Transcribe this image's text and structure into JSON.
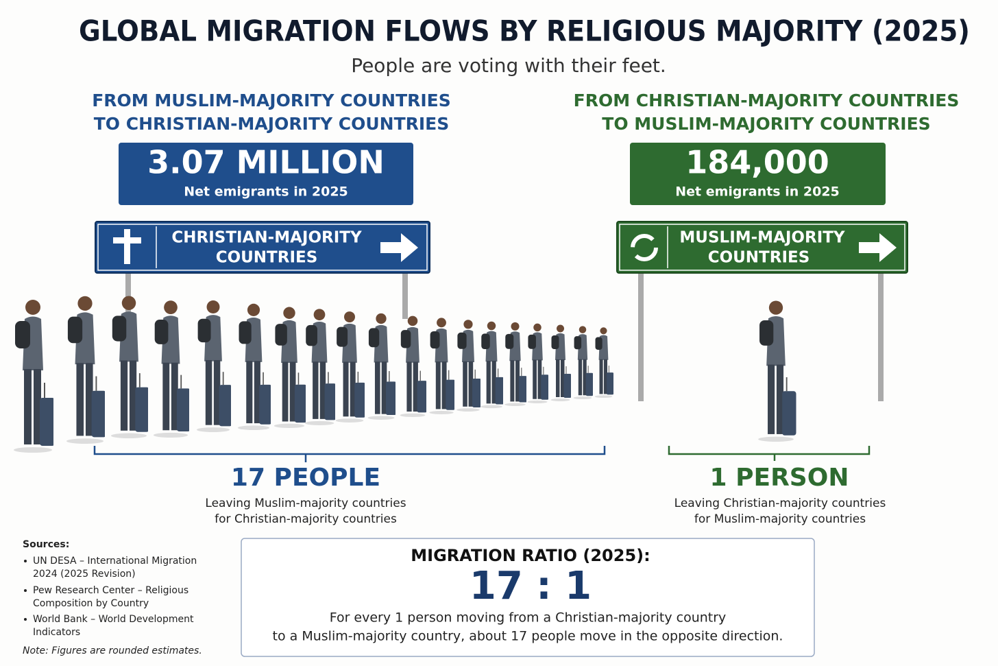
{
  "header": {
    "title": "GLOBAL MIGRATION FLOWS BY RELIGIOUS MAJORITY (2025)",
    "subtitle": "People are voting with their feet."
  },
  "panels": [
    {
      "heading": [
        "FROM MUSLIM-MAJORITY COUNTRIES",
        "TO CHRISTIAN-MAJORITY COUNTRIES"
      ],
      "figure": "3.07 MILLION",
      "figure_caption": "Net emigrants in 2025",
      "sign": [
        "CHRISTIAN-MAJORITY",
        "COUNTRIES"
      ],
      "count": "17 PEOPLE",
      "count_caption": [
        "Leaving Muslim-majority countries",
        "for Christian-majority countries"
      ]
    },
    {
      "heading": [
        "FROM CHRISTIAN-MAJORITY COUNTRIES",
        "TO MUSLIM-MAJORITY COUNTRIES"
      ],
      "figure": "184,000",
      "figure_caption": "Net emigrants in 2025",
      "sign": [
        "MUSLIM-MAJORITY",
        "COUNTRIES"
      ],
      "count": "1 PERSON",
      "count_caption": [
        "Leaving Christian-majority countries",
        "for Muslim-majority countries"
      ]
    }
  ],
  "sources": {
    "title": "Sources:",
    "items": [
      [
        "UN DESA – International Migration",
        "2024 (2025 Revision)"
      ],
      [
        "Pew Research Center – Religious",
        "Composition by Country"
      ],
      [
        "World Bank – World Development",
        "Indicators"
      ]
    ],
    "note": "Note: Figures are rounded estimates."
  },
  "ratio": {
    "title": "MIGRATION RATIO (2025):",
    "value": "17 : 1",
    "text": [
      "For every 1 person moving from a Christian-majority country",
      "to a Muslim-majority country, about 17 people move in the opposite direction."
    ]
  }
}
